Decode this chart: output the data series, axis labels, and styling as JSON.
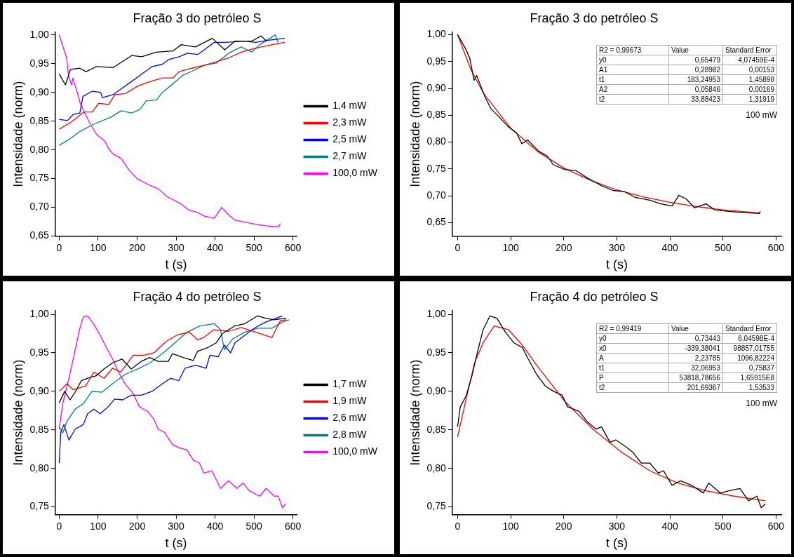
{
  "chart_data": [
    {
      "type": "line",
      "title": "Fração 3 do petróleo S",
      "xlabel": "t (s)",
      "ylabel": "Intensidade (norm)",
      "xlim": [
        -10,
        610
      ],
      "ylim": [
        0.65,
        1.005
      ],
      "xticks": [
        0,
        100,
        200,
        300,
        400,
        500,
        600
      ],
      "yticks": [
        {
          "value": 0.65,
          "label": "0,65"
        },
        {
          "value": 0.7,
          "label": "0,70"
        },
        {
          "value": 0.75,
          "label": "0,75"
        },
        {
          "value": 0.8,
          "label": "0,80"
        },
        {
          "value": 0.85,
          "label": "0,85"
        },
        {
          "value": 0.9,
          "label": "0,90"
        },
        {
          "value": 0.95,
          "label": "0,95"
        },
        {
          "value": 1.0,
          "label": "1,00"
        }
      ],
      "legend": "right",
      "series": [
        {
          "name": "1,4 mW",
          "color": "#000000",
          "x": [
            0,
            16,
            29,
            53,
            69,
            96,
            138,
            186,
            212,
            249,
            292,
            313,
            350,
            393,
            425,
            451,
            494,
            518,
            531
          ],
          "values": [
            0.932,
            0.913,
            0.94,
            0.942,
            0.936,
            0.945,
            0.943,
            0.964,
            0.962,
            0.97,
            0.972,
            0.983,
            0.979,
            0.994,
            0.974,
            0.989,
            0.989,
            0.998,
            0.99
          ]
        },
        {
          "name": "2,3 mW",
          "color": "#ff0000",
          "x": [
            0,
            32,
            64,
            85,
            101,
            127,
            143,
            170,
            202,
            234,
            265,
            292,
            308,
            340,
            372,
            403,
            435,
            467,
            504,
            547,
            579
          ],
          "values": [
            0.836,
            0.849,
            0.866,
            0.866,
            0.881,
            0.879,
            0.896,
            0.898,
            0.911,
            0.919,
            0.925,
            0.925,
            0.936,
            0.942,
            0.947,
            0.953,
            0.96,
            0.97,
            0.977,
            0.983,
            0.987
          ]
        },
        {
          "name": "2,5 mW",
          "color": "#0000ff",
          "x": [
            0,
            21,
            37,
            53,
            61,
            85,
            106,
            111,
            138,
            159,
            186,
            212,
            239,
            265,
            281,
            308,
            329,
            356,
            372,
            398,
            425,
            478,
            504,
            541,
            579
          ],
          "values": [
            0.853,
            0.851,
            0.862,
            0.864,
            0.893,
            0.902,
            0.9,
            0.891,
            0.896,
            0.906,
            0.919,
            0.932,
            0.945,
            0.949,
            0.957,
            0.962,
            0.968,
            0.966,
            0.974,
            0.987,
            0.987,
            0.989,
            0.987,
            0.991,
            0.994
          ]
        },
        {
          "name": "2,7 mW",
          "color": "#008080",
          "x": [
            0,
            27,
            53,
            90,
            133,
            159,
            186,
            207,
            223,
            250,
            265,
            292,
            318,
            345,
            372,
            403,
            435,
            467,
            494,
            515,
            541,
            555,
            563
          ],
          "values": [
            0.808,
            0.819,
            0.832,
            0.845,
            0.857,
            0.868,
            0.864,
            0.87,
            0.885,
            0.887,
            0.9,
            0.915,
            0.93,
            0.938,
            0.947,
            0.951,
            0.968,
            0.979,
            0.97,
            0.983,
            0.994,
            1.0,
            0.985
          ]
        },
        {
          "name": "100,0 mW",
          "color": "#ff00ff",
          "x": [
            0,
            11,
            19,
            24,
            32,
            35,
            48,
            53,
            64,
            80,
            96,
            117,
            127,
            138,
            159,
            180,
            202,
            234,
            255,
            276,
            308,
            334,
            356,
            372,
            398,
            417,
            435,
            451,
            478,
            510,
            531,
            563,
            568
          ],
          "values": [
            1.0,
            0.977,
            0.96,
            0.928,
            0.913,
            0.925,
            0.896,
            0.883,
            0.866,
            0.845,
            0.827,
            0.815,
            0.802,
            0.793,
            0.785,
            0.764,
            0.749,
            0.738,
            0.732,
            0.719,
            0.708,
            0.695,
            0.691,
            0.685,
            0.681,
            0.7,
            0.687,
            0.678,
            0.674,
            0.67,
            0.668,
            0.666,
            0.672
          ]
        }
      ]
    },
    {
      "type": "line",
      "title": "Fração 3 do petróleo S",
      "xlabel": "t (s)",
      "ylabel": "Intensidade (norm)",
      "xlim": [
        -10,
        610
      ],
      "ylim": [
        0.625,
        1.005
      ],
      "xticks": [
        0,
        100,
        200,
        300,
        400,
        500,
        600
      ],
      "yticks": [
        {
          "value": 0.65,
          "label": "0,65"
        },
        {
          "value": 0.7,
          "label": "0,70"
        },
        {
          "value": 0.75,
          "label": "0,75"
        },
        {
          "value": 0.8,
          "label": "0,80"
        },
        {
          "value": 0.85,
          "label": "0,85"
        },
        {
          "value": 0.9,
          "label": "0,90"
        },
        {
          "value": 0.95,
          "label": "0,95"
        },
        {
          "value": 1.0,
          "label": "1,00"
        }
      ],
      "annotations": [
        "R2 = 0,99673",
        "Value",
        "Standard Error",
        "y0",
        "0,65479",
        "4,07459E-4",
        "A1",
        "0,28982",
        "0,00153",
        "t1",
        "183,24953",
        "1,45898",
        "A2",
        "0,05846",
        "0,00169",
        "t2",
        "33,88423",
        "1,31919",
        "100 mW"
      ],
      "series": [
        {
          "color": "#000000",
          "x": [
            0,
            15,
            23,
            31,
            36,
            52,
            63,
            79,
            95,
            111,
            121,
            132,
            153,
            169,
            180,
            202,
            223,
            245,
            271,
            293,
            314,
            335,
            362,
            383,
            404,
            417,
            431,
            446,
            468,
            484,
            511,
            537,
            569,
            570
          ],
          "values": [
            1.0,
            0.974,
            0.956,
            0.915,
            0.924,
            0.883,
            0.862,
            0.846,
            0.829,
            0.817,
            0.797,
            0.804,
            0.783,
            0.774,
            0.758,
            0.749,
            0.747,
            0.733,
            0.719,
            0.71,
            0.708,
            0.697,
            0.692,
            0.685,
            0.681,
            0.701,
            0.694,
            0.678,
            0.685,
            0.674,
            0.671,
            0.669,
            0.667,
            0.671
          ]
        },
        {
          "color": "#ff0000",
          "x": [
            0,
            25,
            50,
            100,
            150,
            200,
            250,
            300,
            350,
            400,
            450,
            500,
            570
          ],
          "values": [
            1.0,
            0.935,
            0.889,
            0.826,
            0.783,
            0.752,
            0.729,
            0.711,
            0.698,
            0.688,
            0.68,
            0.674,
            0.668
          ]
        }
      ]
    },
    {
      "type": "line",
      "title": "Fração 4 do petróleo S",
      "xlabel": "t (s)",
      "ylabel": "Intensidade (norm)",
      "xlim": [
        -10,
        610
      ],
      "ylim": [
        0.74,
        1.005
      ],
      "xticks": [
        0,
        100,
        200,
        300,
        400,
        500,
        600
      ],
      "yticks": [
        {
          "value": 0.75,
          "label": "0,75"
        },
        {
          "value": 0.8,
          "label": "0,80"
        },
        {
          "value": 0.85,
          "label": "0,85"
        },
        {
          "value": 0.9,
          "label": "0,90"
        },
        {
          "value": 0.95,
          "label": "0,95"
        },
        {
          "value": 1.0,
          "label": "1,00"
        }
      ],
      "legend": "right",
      "series": [
        {
          "name": "1,7 mW",
          "color": "#000000",
          "x": [
            0,
            14,
            28,
            41,
            57,
            73,
            94,
            115,
            137,
            161,
            185,
            211,
            232,
            254,
            280,
            291,
            318,
            344,
            355,
            382,
            403,
            419,
            451,
            477,
            509,
            530,
            551,
            583
          ],
          "values": [
            0.885,
            0.9,
            0.889,
            0.899,
            0.914,
            0.917,
            0.92,
            0.929,
            0.937,
            0.942,
            0.929,
            0.939,
            0.944,
            0.939,
            0.939,
            0.949,
            0.944,
            0.94,
            0.952,
            0.957,
            0.963,
            0.975,
            0.985,
            0.988,
            0.998,
            0.995,
            0.993,
            0.995
          ]
        },
        {
          "name": "1,9 mW",
          "color": "#ff0000",
          "x": [
            0,
            20,
            36,
            68,
            89,
            115,
            137,
            158,
            190,
            217,
            243,
            275,
            302,
            334,
            355,
            371,
            397,
            435,
            467,
            504,
            546,
            568,
            583
          ],
          "values": [
            0.9,
            0.91,
            0.902,
            0.907,
            0.925,
            0.917,
            0.93,
            0.925,
            0.947,
            0.947,
            0.95,
            0.965,
            0.973,
            0.977,
            0.967,
            0.97,
            0.98,
            0.978,
            0.983,
            0.977,
            0.97,
            0.992,
            0.993
          ]
        },
        {
          "name": "2,6 mW",
          "color": "#0000ff",
          "x": [
            0,
            4,
            12,
            25,
            41,
            62,
            73,
            89,
            105,
            126,
            142,
            163,
            185,
            211,
            238,
            265,
            286,
            307,
            323,
            350,
            377,
            387,
            408,
            424,
            440,
            451,
            477,
            504,
            530,
            557,
            573
          ],
          "values": [
            0.807,
            0.847,
            0.857,
            0.837,
            0.851,
            0.857,
            0.871,
            0.877,
            0.871,
            0.88,
            0.89,
            0.889,
            0.895,
            0.895,
            0.9,
            0.91,
            0.917,
            0.914,
            0.93,
            0.934,
            0.93,
            0.947,
            0.945,
            0.96,
            0.95,
            0.963,
            0.973,
            0.983,
            0.99,
            0.995,
            0.998
          ]
        },
        {
          "name": "2,8 mW",
          "color": "#008080",
          "x": [
            0,
            9,
            20,
            41,
            62,
            84,
            110,
            137,
            169,
            201,
            233,
            265,
            297,
            329,
            361,
            398,
            414,
            424,
            445,
            477,
            509,
            546,
            573,
            590
          ],
          "values": [
            0.854,
            0.846,
            0.861,
            0.877,
            0.884,
            0.9,
            0.899,
            0.91,
            0.922,
            0.929,
            0.937,
            0.949,
            0.963,
            0.977,
            0.985,
            0.988,
            0.98,
            0.954,
            0.968,
            0.977,
            0.982,
            0.982,
            0.99,
            0.993
          ]
        },
        {
          "name": "100,0 mW",
          "color": "#ff00ff",
          "x": [
            0,
            9,
            25,
            41,
            52,
            62,
            73,
            89,
            105,
            121,
            137,
            153,
            169,
            190,
            206,
            227,
            243,
            254,
            270,
            291,
            307,
            328,
            344,
            360,
            371,
            392,
            414,
            435,
            456,
            472,
            488,
            515,
            531,
            552,
            562,
            573,
            581
          ],
          "values": [
            0.851,
            0.884,
            0.917,
            0.954,
            0.98,
            0.997,
            0.998,
            0.987,
            0.973,
            0.957,
            0.942,
            0.924,
            0.91,
            0.897,
            0.88,
            0.874,
            0.864,
            0.851,
            0.847,
            0.831,
            0.827,
            0.824,
            0.811,
            0.807,
            0.794,
            0.797,
            0.774,
            0.784,
            0.774,
            0.781,
            0.771,
            0.764,
            0.774,
            0.764,
            0.764,
            0.749,
            0.754
          ]
        }
      ]
    },
    {
      "type": "line",
      "title": "Fração 4 do petróleo S",
      "xlabel": "t (s)",
      "ylabel": "Intensidade (norm)",
      "xlim": [
        -10,
        610
      ],
      "ylim": [
        0.74,
        1.005
      ],
      "xticks": [
        0,
        100,
        200,
        300,
        400,
        500,
        600
      ],
      "yticks": [
        {
          "value": 0.75,
          "label": "0,75"
        },
        {
          "value": 0.8,
          "label": "0,80"
        },
        {
          "value": 0.85,
          "label": "0,85"
        },
        {
          "value": 0.9,
          "label": "0,90"
        },
        {
          "value": 0.95,
          "label": "0,95"
        },
        {
          "value": 1.0,
          "label": "1,00"
        }
      ],
      "annotations": [
        "R2 = 0,99419",
        "Value",
        "Standard Error",
        "y0",
        "0,73443",
        "6,04598E-4",
        "x0",
        "-339,38041",
        "98857,01755",
        "A",
        "2,23785",
        "1096,82224",
        "t1",
        "32,06953",
        "0,75837",
        "P",
        "53818,78656",
        "1,65915E8",
        "t2",
        "201,69367",
        "1,53533",
        "100 mW"
      ],
      "series": [
        {
          "color": "#000000",
          "x": [
            0,
            5,
            16,
            27,
            37,
            48,
            61,
            74,
            90,
            106,
            122,
            133,
            149,
            165,
            181,
            197,
            207,
            229,
            245,
            261,
            271,
            287,
            298,
            319,
            330,
            346,
            362,
            378,
            388,
            404,
            420,
            441,
            463,
            473,
            495,
            511,
            532,
            548,
            564,
            572,
            580
          ],
          "values": [
            0.854,
            0.88,
            0.894,
            0.92,
            0.95,
            0.98,
            0.998,
            0.995,
            0.977,
            0.963,
            0.957,
            0.942,
            0.922,
            0.907,
            0.9,
            0.895,
            0.88,
            0.874,
            0.86,
            0.851,
            0.854,
            0.834,
            0.837,
            0.827,
            0.821,
            0.807,
            0.807,
            0.794,
            0.797,
            0.778,
            0.784,
            0.778,
            0.768,
            0.781,
            0.768,
            0.771,
            0.774,
            0.758,
            0.764,
            0.749,
            0.754
          ]
        },
        {
          "color": "#ff0000",
          "x": [
            0,
            16,
            32,
            48,
            69,
            96,
            122,
            149,
            176,
            202,
            255,
            309,
            362,
            415,
            468,
            521,
            580
          ],
          "values": [
            0.841,
            0.89,
            0.937,
            0.963,
            0.985,
            0.98,
            0.96,
            0.934,
            0.91,
            0.887,
            0.851,
            0.821,
            0.797,
            0.781,
            0.771,
            0.764,
            0.758
          ]
        }
      ]
    }
  ]
}
